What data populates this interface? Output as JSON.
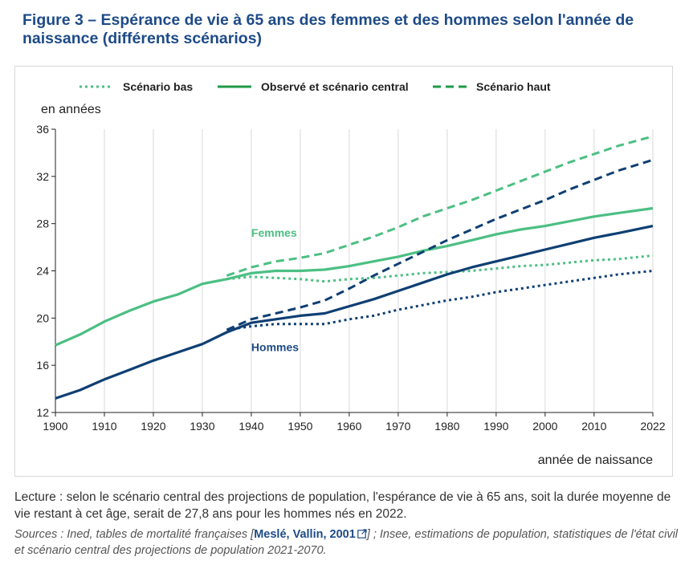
{
  "figure": {
    "title": "Figure 3 – Espérance de vie à 65 ans des femmes et des hommes selon l'année de naissance (différents scénarios)"
  },
  "footnote": {
    "lecture": "Lecture : selon le scénario central des projections de population, l'espérance de vie à 65 ans, soit la durée moyenne de vie restant à cet âge, serait de 27,8 ans pour les hommes nés en 2022.",
    "sources_prefix": "Sources : Ined, tables de mortalité françaises [",
    "sources_link": "Meslé, Vallin, 2001",
    "link_icon": "external-link-icon",
    "sources_suffix": "] ; Insee, estimations de population, statistiques de l'état civil et scénario central des projections de population 2021-2070."
  },
  "chart_data": {
    "type": "line",
    "ylabel": "en années",
    "xlabel": "année de naissance",
    "xlim": [
      1900,
      2022
    ],
    "ylim": [
      12,
      36
    ],
    "x_ticks": [
      1900,
      1910,
      1920,
      1930,
      1940,
      1950,
      1960,
      1970,
      1980,
      1990,
      2000,
      2010,
      2022
    ],
    "y_ticks": [
      12,
      16,
      20,
      24,
      28,
      32,
      36
    ],
    "grid": {
      "vertical": true,
      "horizontal": false
    },
    "legend": {
      "position": "top",
      "entries": [
        {
          "label": "Scénario bas",
          "style": "dotted"
        },
        {
          "label": "Observé et scénario central",
          "style": "solid"
        },
        {
          "label": "Scénario haut",
          "style": "dashed"
        }
      ]
    },
    "annotations": [
      {
        "text": "Femmes",
        "color": "#4cbf83"
      },
      {
        "text": "Hommes",
        "color": "#1e4b87"
      }
    ],
    "colors": {
      "femmes": "#4cbf83",
      "hommes": "#0f3f73",
      "axis": "#222222",
      "grid": "#d9d9d9"
    },
    "series": [
      {
        "group": "femmes",
        "scenario": "central",
        "style": "solid",
        "x": [
          1900,
          1905,
          1910,
          1915,
          1920,
          1925,
          1930,
          1935,
          1940,
          1945,
          1950,
          1955,
          1960,
          1965,
          1970,
          1975,
          1980,
          1985,
          1990,
          1995,
          2000,
          2005,
          2010,
          2015,
          2022
        ],
        "y": [
          17.7,
          18.6,
          19.7,
          20.6,
          21.4,
          22.0,
          22.9,
          23.3,
          23.8,
          24.0,
          24.0,
          24.1,
          24.4,
          24.8,
          25.2,
          25.7,
          26.1,
          26.6,
          27.1,
          27.5,
          27.8,
          28.2,
          28.6,
          28.9,
          29.3
        ]
      },
      {
        "group": "femmes",
        "scenario": "bas",
        "style": "dotted",
        "x": [
          1935,
          1940,
          1945,
          1950,
          1955,
          1960,
          1965,
          1970,
          1975,
          1980,
          1985,
          1990,
          1995,
          2000,
          2005,
          2010,
          2015,
          2022
        ],
        "y": [
          23.3,
          23.5,
          23.4,
          23.3,
          23.1,
          23.3,
          23.4,
          23.6,
          23.8,
          23.9,
          24.0,
          24.2,
          24.4,
          24.5,
          24.7,
          24.9,
          25.0,
          25.3
        ]
      },
      {
        "group": "femmes",
        "scenario": "haut",
        "style": "dashed",
        "x": [
          1935,
          1940,
          1945,
          1950,
          1955,
          1960,
          1965,
          1970,
          1975,
          1980,
          1985,
          1990,
          1995,
          2000,
          2005,
          2010,
          2015,
          2022
        ],
        "y": [
          23.6,
          24.3,
          24.8,
          25.1,
          25.5,
          26.2,
          26.9,
          27.7,
          28.6,
          29.3,
          30.0,
          30.8,
          31.6,
          32.4,
          33.2,
          33.9,
          34.6,
          35.4
        ]
      },
      {
        "group": "hommes",
        "scenario": "central",
        "style": "solid",
        "x": [
          1900,
          1905,
          1910,
          1915,
          1920,
          1925,
          1930,
          1935,
          1940,
          1945,
          1950,
          1955,
          1960,
          1965,
          1970,
          1975,
          1980,
          1985,
          1990,
          1995,
          2000,
          2005,
          2010,
          2015,
          2022
        ],
        "y": [
          13.2,
          13.9,
          14.8,
          15.6,
          16.4,
          17.1,
          17.8,
          18.8,
          19.6,
          19.9,
          20.2,
          20.4,
          21.0,
          21.6,
          22.3,
          23.0,
          23.7,
          24.3,
          24.8,
          25.3,
          25.8,
          26.3,
          26.8,
          27.2,
          27.8
        ]
      },
      {
        "group": "hommes",
        "scenario": "bas",
        "style": "dotted",
        "x": [
          1935,
          1940,
          1945,
          1950,
          1955,
          1960,
          1965,
          1970,
          1975,
          1980,
          1985,
          1990,
          1995,
          2000,
          2005,
          2010,
          2015,
          2022
        ],
        "y": [
          19.0,
          19.3,
          19.5,
          19.5,
          19.5,
          19.9,
          20.2,
          20.7,
          21.1,
          21.5,
          21.8,
          22.2,
          22.5,
          22.8,
          23.1,
          23.4,
          23.7,
          24.0
        ]
      },
      {
        "group": "hommes",
        "scenario": "haut",
        "style": "dashed",
        "x": [
          1935,
          1940,
          1945,
          1950,
          1955,
          1960,
          1965,
          1970,
          1975,
          1980,
          1985,
          1990,
          1995,
          2000,
          2005,
          2010,
          2015,
          2022
        ],
        "y": [
          19.0,
          19.9,
          20.4,
          20.9,
          21.5,
          22.5,
          23.6,
          24.6,
          25.6,
          26.6,
          27.5,
          28.4,
          29.2,
          30.0,
          30.9,
          31.7,
          32.5,
          33.4
        ]
      }
    ]
  }
}
